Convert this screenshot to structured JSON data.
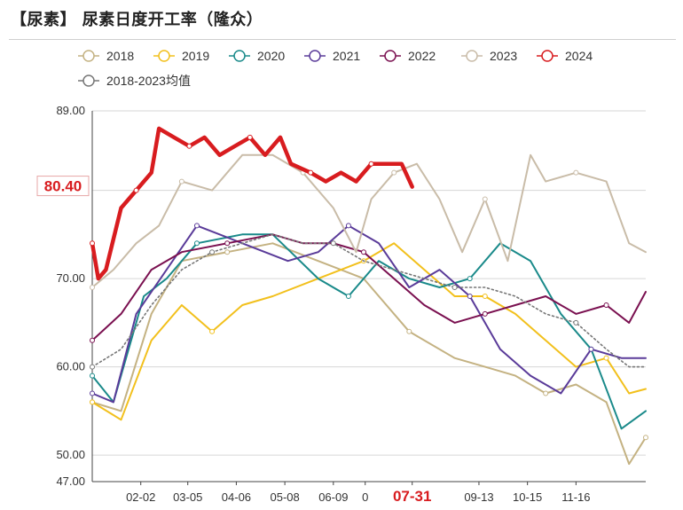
{
  "chart_data": {
    "type": "line",
    "title": "【尿素】 尿素日度开工率（隆众）",
    "x_ticks": [
      "02-02",
      "03-05",
      "04-06",
      "05-08",
      "06-09",
      "0",
      "07-31",
      "09-13",
      "10-15",
      "11-16"
    ],
    "highlight_x_tick": "07-31",
    "y_ticks": [
      89.0,
      80.0,
      70.0,
      60.0,
      50.0,
      47.0
    ],
    "ylim": [
      47,
      89
    ],
    "day_range": [
      1,
      366
    ],
    "x_tick_days": [
      33,
      64,
      96,
      128,
      160,
      181,
      212,
      256,
      288,
      320
    ],
    "highlight_label": "80.40",
    "highlight_value": 80.4,
    "grid": "horizontal",
    "legend_position": "top-left",
    "series": [
      {
        "name": "2018",
        "color": "#c4b282",
        "points": [
          [
            1,
            56
          ],
          [
            20,
            55
          ],
          [
            40,
            66
          ],
          [
            60,
            72
          ],
          [
            90,
            73
          ],
          [
            120,
            74
          ],
          [
            150,
            72
          ],
          [
            180,
            70
          ],
          [
            210,
            64
          ],
          [
            240,
            61
          ],
          [
            260,
            60
          ],
          [
            280,
            59
          ],
          [
            300,
            57
          ],
          [
            320,
            58
          ],
          [
            340,
            56
          ],
          [
            355,
            49
          ],
          [
            366,
            52
          ]
        ]
      },
      {
        "name": "2019",
        "color": "#f2c01c",
        "points": [
          [
            1,
            56
          ],
          [
            20,
            54
          ],
          [
            40,
            63
          ],
          [
            60,
            67
          ],
          [
            80,
            64
          ],
          [
            100,
            67
          ],
          [
            120,
            68
          ],
          [
            150,
            70
          ],
          [
            180,
            72
          ],
          [
            200,
            74
          ],
          [
            220,
            71
          ],
          [
            240,
            68
          ],
          [
            260,
            68
          ],
          [
            280,
            66
          ],
          [
            300,
            63
          ],
          [
            320,
            60
          ],
          [
            340,
            61
          ],
          [
            355,
            57
          ],
          [
            366,
            57.5
          ]
        ]
      },
      {
        "name": "2020",
        "color": "#1a8a8a",
        "points": [
          [
            1,
            59
          ],
          [
            15,
            56
          ],
          [
            35,
            68
          ],
          [
            50,
            70
          ],
          [
            70,
            74
          ],
          [
            100,
            75
          ],
          [
            120,
            75
          ],
          [
            150,
            70
          ],
          [
            170,
            68
          ],
          [
            190,
            72
          ],
          [
            210,
            70
          ],
          [
            230,
            69
          ],
          [
            250,
            70
          ],
          [
            270,
            74
          ],
          [
            290,
            72
          ],
          [
            310,
            66
          ],
          [
            330,
            62
          ],
          [
            350,
            53
          ],
          [
            366,
            55
          ]
        ]
      },
      {
        "name": "2021",
        "color": "#5a3b99",
        "points": [
          [
            1,
            57
          ],
          [
            15,
            56
          ],
          [
            30,
            66
          ],
          [
            50,
            71
          ],
          [
            70,
            76
          ],
          [
            100,
            74
          ],
          [
            130,
            72
          ],
          [
            150,
            73
          ],
          [
            170,
            76
          ],
          [
            190,
            74
          ],
          [
            210,
            69
          ],
          [
            230,
            71
          ],
          [
            250,
            68
          ],
          [
            270,
            62
          ],
          [
            290,
            59
          ],
          [
            310,
            57
          ],
          [
            330,
            62
          ],
          [
            350,
            61
          ],
          [
            366,
            61
          ]
        ]
      },
      {
        "name": "2022",
        "color": "#7a1050",
        "points": [
          [
            1,
            63
          ],
          [
            20,
            66
          ],
          [
            40,
            71
          ],
          [
            60,
            73
          ],
          [
            90,
            74
          ],
          [
            120,
            75
          ],
          [
            140,
            74
          ],
          [
            160,
            74
          ],
          [
            180,
            73
          ],
          [
            200,
            70
          ],
          [
            220,
            67
          ],
          [
            240,
            65
          ],
          [
            260,
            66
          ],
          [
            280,
            67
          ],
          [
            300,
            68
          ],
          [
            320,
            66
          ],
          [
            340,
            67
          ],
          [
            355,
            65
          ],
          [
            366,
            68.5
          ]
        ]
      },
      {
        "name": "2023",
        "color": "#c9bca8",
        "points": [
          [
            1,
            69
          ],
          [
            15,
            71
          ],
          [
            30,
            74
          ],
          [
            45,
            76
          ],
          [
            60,
            81
          ],
          [
            80,
            80
          ],
          [
            100,
            84
          ],
          [
            120,
            84
          ],
          [
            140,
            82
          ],
          [
            160,
            78
          ],
          [
            175,
            73
          ],
          [
            185,
            79
          ],
          [
            200,
            82
          ],
          [
            215,
            83
          ],
          [
            230,
            79
          ],
          [
            245,
            73
          ],
          [
            260,
            79
          ],
          [
            275,
            72
          ],
          [
            290,
            84
          ],
          [
            300,
            81
          ],
          [
            320,
            82
          ],
          [
            340,
            81
          ],
          [
            355,
            74
          ],
          [
            366,
            73
          ]
        ]
      },
      {
        "name": "2024",
        "color": "#d81c1f",
        "points": [
          [
            1,
            74
          ],
          [
            5,
            70
          ],
          [
            10,
            71
          ],
          [
            20,
            78
          ],
          [
            30,
            80
          ],
          [
            40,
            82
          ],
          [
            45,
            87
          ],
          [
            55,
            86
          ],
          [
            65,
            85
          ],
          [
            75,
            86
          ],
          [
            85,
            84
          ],
          [
            95,
            85
          ],
          [
            105,
            86
          ],
          [
            115,
            84
          ],
          [
            125,
            86
          ],
          [
            132,
            83
          ],
          [
            145,
            82
          ],
          [
            155,
            81
          ],
          [
            165,
            82
          ],
          [
            175,
            81
          ],
          [
            185,
            83
          ],
          [
            195,
            83
          ],
          [
            205,
            83
          ],
          [
            212,
            80.4
          ]
        ]
      },
      {
        "name": "2018-2023均值",
        "color": "#777777",
        "dashed": true,
        "points": [
          [
            1,
            60
          ],
          [
            20,
            62
          ],
          [
            40,
            67
          ],
          [
            60,
            71
          ],
          [
            80,
            73
          ],
          [
            100,
            74
          ],
          [
            120,
            75
          ],
          [
            140,
            74
          ],
          [
            160,
            74
          ],
          [
            180,
            72
          ],
          [
            200,
            71
          ],
          [
            220,
            70
          ],
          [
            240,
            69
          ],
          [
            260,
            69
          ],
          [
            280,
            68
          ],
          [
            300,
            66
          ],
          [
            320,
            65
          ],
          [
            340,
            62
          ],
          [
            355,
            60
          ],
          [
            366,
            60
          ]
        ]
      }
    ]
  }
}
